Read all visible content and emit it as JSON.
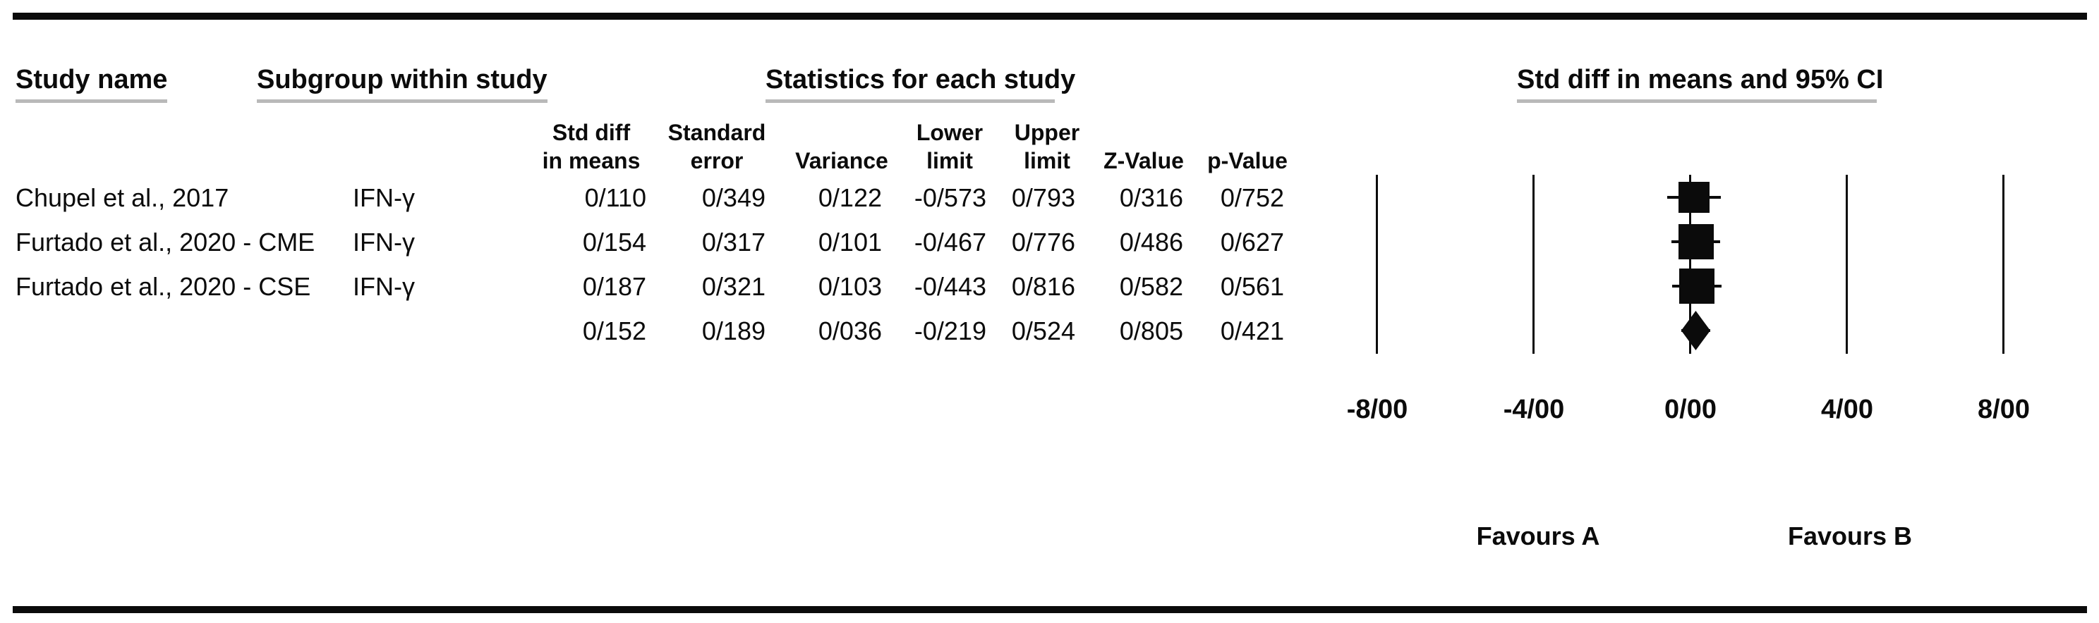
{
  "figure": {
    "headers": {
      "study_name": "Study name",
      "subgroup": "Subgroup within study",
      "statistics": "Statistics for each study",
      "plot": "Std diff in means and 95% CI"
    },
    "columns": {
      "std_diff": {
        "line1": "Std diff",
        "line2": "in means"
      },
      "std_error": {
        "line1": "Standard",
        "line2": "error"
      },
      "variance": {
        "line1": "",
        "line2": "Variance"
      },
      "lower": {
        "line1": "Lower",
        "line2": "limit"
      },
      "upper": {
        "line1": "Upper",
        "line2": "limit"
      },
      "z_value": {
        "line1": "",
        "line2": "Z-Value"
      },
      "p_value": {
        "line1": "",
        "line2": "p-Value"
      }
    },
    "rows": [
      {
        "study": "Chupel et al., 2017",
        "subgroup": "IFN-γ",
        "std_diff": "0/110",
        "std_error": "0/349",
        "variance": "0/122",
        "lower": "-0/573",
        "upper": "0/793",
        "z": "0/316",
        "p": "0/752"
      },
      {
        "study": "Furtado et al., 2020 - CME",
        "subgroup": "IFN-γ",
        "std_diff": "0/154",
        "std_error": "0/317",
        "variance": "0/101",
        "lower": "-0/467",
        "upper": "0/776",
        "z": "0/486",
        "p": "0/627"
      },
      {
        "study": "Furtado et al., 2020 - CSE",
        "subgroup": "IFN-γ",
        "std_diff": "0/187",
        "std_error": "0/321",
        "variance": "0/103",
        "lower": "-0/443",
        "upper": "0/816",
        "z": "0/582",
        "p": "0/561"
      },
      {
        "study": "",
        "subgroup": "",
        "std_diff": "0/152",
        "std_error": "0/189",
        "variance": "0/036",
        "lower": "-0/219",
        "upper": "0/524",
        "z": "0/805",
        "p": "0/421"
      }
    ]
  },
  "chart_data": {
    "type": "forest",
    "title": "Std diff in means and 95% CI",
    "xlim": [
      -8,
      8
    ],
    "x_tick_values": [
      -8,
      -4,
      0,
      4,
      8
    ],
    "x_tick_labels": [
      "-8/00",
      "-4/00",
      "0/00",
      "4/00",
      "8/00"
    ],
    "grid": "vertical-lines",
    "decimal_separator": "/",
    "footer_labels": {
      "left": "Favours A",
      "right": "Favours B"
    },
    "studies": [
      {
        "name": "Chupel et al., 2017",
        "subgroup": "IFN-γ",
        "mean": 0.11,
        "lower": -0.573,
        "upper": 0.793,
        "marker": "square",
        "marker_size": 44
      },
      {
        "name": "Furtado et al., 2020 - CME",
        "subgroup": "IFN-γ",
        "mean": 0.154,
        "lower": -0.467,
        "upper": 0.776,
        "marker": "square",
        "marker_size": 50
      },
      {
        "name": "Furtado et al., 2020 - CSE",
        "subgroup": "IFN-γ",
        "mean": 0.187,
        "lower": -0.443,
        "upper": 0.816,
        "marker": "square",
        "marker_size": 50
      },
      {
        "name": "",
        "subgroup": "",
        "mean": 0.152,
        "lower": -0.219,
        "upper": 0.524,
        "marker": "diamond",
        "marker_size": 56
      }
    ],
    "colors": {
      "marker": "#0b0b0b",
      "gridline": "#0b0b0b",
      "underline": "#b9b9b9",
      "text": "#0b0b0b",
      "background": "#ffffff"
    }
  }
}
